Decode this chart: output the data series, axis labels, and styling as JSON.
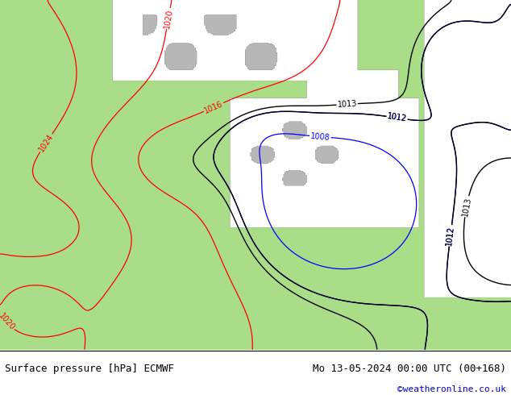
{
  "title_left": "Surface pressure [hPa] ECMWF",
  "title_right": "Mo 13-05-2024 00:00 UTC (00+168)",
  "copyright": "©weatheronline.co.uk",
  "land_color": [
    0.667,
    0.867,
    0.533,
    1.0
  ],
  "sea_color": [
    0.88,
    0.88,
    0.88,
    1.0
  ],
  "footer_text_color": "#000000",
  "copyright_color": "#0000cc",
  "label_fontsize": 7,
  "footer_fontsize": 9,
  "figsize": [
    6.34,
    4.9
  ],
  "dpi": 100
}
